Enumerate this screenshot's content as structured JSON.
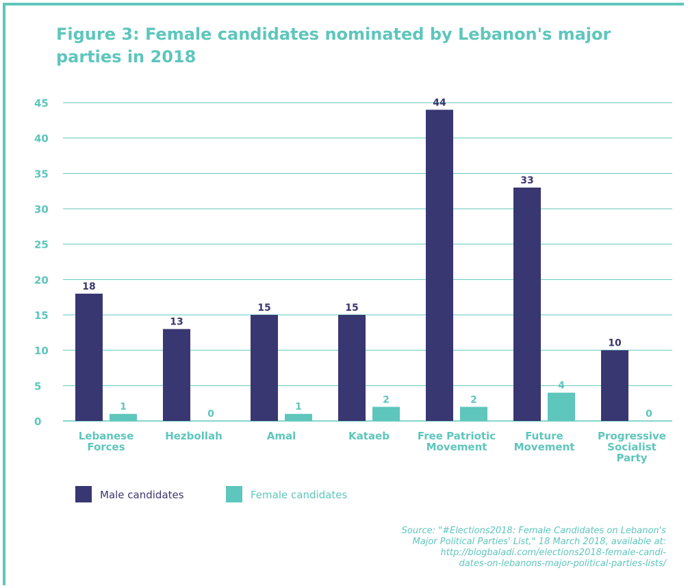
{
  "title": "Figure 3: Female candidates nominated by Lebanon's major parties in 2018",
  "chart_data": {
    "type": "bar",
    "title": "Figure 3: Female candidates nominated by Lebanon's major parties in 2018",
    "categories": [
      [
        "Lebanese",
        "Forces"
      ],
      [
        "Hezbollah"
      ],
      [
        "Amal"
      ],
      [
        "Kataeb"
      ],
      [
        "Free Patriotic",
        "Movement"
      ],
      [
        "Future",
        "Movement"
      ],
      [
        "Progressive",
        "Socialist",
        "Party"
      ]
    ],
    "series": [
      {
        "name": "Male candidates",
        "color": "#383771",
        "values": [
          18,
          13,
          15,
          15,
          44,
          33,
          10
        ]
      },
      {
        "name": "Female candidates",
        "color": "#5ec6bc",
        "values": [
          1,
          0,
          1,
          2,
          2,
          4,
          0
        ]
      }
    ],
    "yticks": [
      0,
      5,
      10,
      15,
      20,
      25,
      30,
      35,
      40,
      45
    ],
    "ylim": [
      0,
      45
    ],
    "grid": true,
    "legend": "bottom-left",
    "data_labels": true
  },
  "source": [
    "Source: \"#Elections2018: Female Candidates on Lebanon's",
    "Major Political Parties' List,\" 18 March 2018, available at:",
    "http://blogbaladi.com/elections2018-female-candi-",
    "dates-on-lebanons-major-political-parties-lists/"
  ],
  "colors": {
    "accent": "#5ec6bc",
    "male": "#383771",
    "female": "#5ec6bc",
    "grid": "#5ec6bc"
  }
}
